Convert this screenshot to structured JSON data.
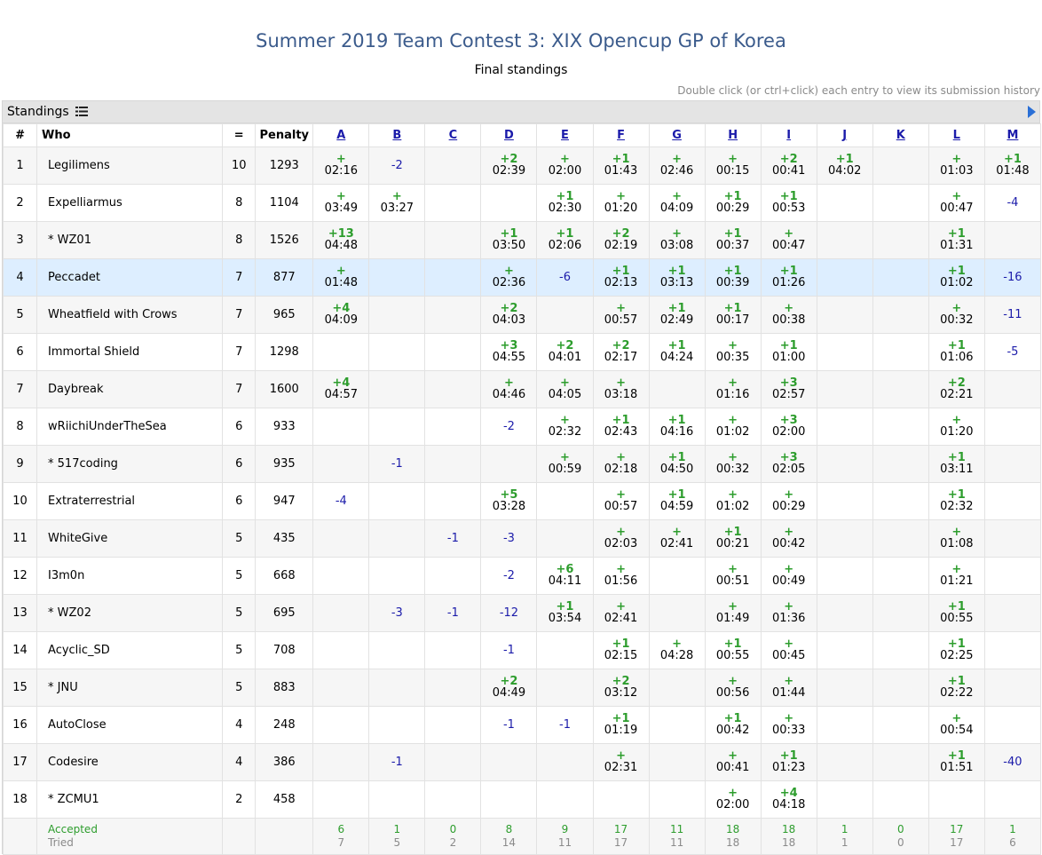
{
  "title": "Summer 2019 Team Contest 3: XIX Opencup GP of Korea",
  "subtitle": "Final standings",
  "hint": "Double click (or ctrl+click) each entry to view its submission history",
  "panel_label": "Standings",
  "headers": {
    "rank": "#",
    "who": "Who",
    "solved": "=",
    "penalty": "Penalty"
  },
  "problems": [
    "A",
    "B",
    "C",
    "D",
    "E",
    "F",
    "G",
    "H",
    "I",
    "J",
    "K",
    "L",
    "M"
  ],
  "highlight_color": "#ddeeff",
  "accepted_color": "#2d9d2d",
  "rejected_color": "#1b1baa",
  "rows": [
    {
      "rank": "1",
      "name": "Legilimens",
      "solved": "10",
      "penalty": "1293",
      "cells": [
        [
          "+",
          "02:16"
        ],
        "-2",
        "",
        [
          "+2",
          "02:39"
        ],
        [
          "+",
          "02:00"
        ],
        [
          "+1",
          "01:43"
        ],
        [
          "+",
          "02:46"
        ],
        [
          "+",
          "00:15"
        ],
        [
          "+2",
          "00:41"
        ],
        [
          "+1",
          "04:02"
        ],
        "",
        [
          "+",
          "01:03"
        ],
        [
          "+1",
          "01:48"
        ]
      ]
    },
    {
      "rank": "2",
      "name": "Expelliarmus",
      "solved": "8",
      "penalty": "1104",
      "cells": [
        [
          "+",
          "03:49"
        ],
        [
          "+",
          "03:27"
        ],
        "",
        "",
        [
          "+1",
          "02:30"
        ],
        [
          "+",
          "01:20"
        ],
        [
          "+",
          "04:09"
        ],
        [
          "+1",
          "00:29"
        ],
        [
          "+1",
          "00:53"
        ],
        "",
        "",
        [
          "+",
          "00:47"
        ],
        "-4"
      ]
    },
    {
      "rank": "3",
      "name": "* WZ01",
      "solved": "8",
      "penalty": "1526",
      "cells": [
        [
          "+13",
          "04:48"
        ],
        "",
        "",
        [
          "+1",
          "03:50"
        ],
        [
          "+1",
          "02:06"
        ],
        [
          "+2",
          "02:19"
        ],
        [
          "+",
          "03:08"
        ],
        [
          "+1",
          "00:37"
        ],
        [
          "+",
          "00:47"
        ],
        "",
        "",
        [
          "+1",
          "01:31"
        ],
        ""
      ]
    },
    {
      "rank": "4",
      "name": "Peccadet",
      "solved": "7",
      "penalty": "877",
      "highlight": true,
      "cells": [
        [
          "+",
          "01:48"
        ],
        "",
        "",
        [
          "+",
          "02:36"
        ],
        "-6",
        [
          "+1",
          "02:13"
        ],
        [
          "+1",
          "03:13"
        ],
        [
          "+1",
          "00:39"
        ],
        [
          "+1",
          "01:26"
        ],
        "",
        "",
        [
          "+1",
          "01:02"
        ],
        "-16"
      ]
    },
    {
      "rank": "5",
      "name": "Wheatfield with Crows",
      "solved": "7",
      "penalty": "965",
      "cells": [
        [
          "+4",
          "04:09"
        ],
        "",
        "",
        [
          "+2",
          "04:03"
        ],
        "",
        [
          "+",
          "00:57"
        ],
        [
          "+1",
          "02:49"
        ],
        [
          "+1",
          "00:17"
        ],
        [
          "+",
          "00:38"
        ],
        "",
        "",
        [
          "+",
          "00:32"
        ],
        "-11"
      ]
    },
    {
      "rank": "6",
      "name": "Immortal Shield",
      "solved": "7",
      "penalty": "1298",
      "cells": [
        "",
        "",
        "",
        [
          "+3",
          "04:55"
        ],
        [
          "+2",
          "04:01"
        ],
        [
          "+2",
          "02:17"
        ],
        [
          "+1",
          "04:24"
        ],
        [
          "+",
          "00:35"
        ],
        [
          "+1",
          "01:00"
        ],
        "",
        "",
        [
          "+1",
          "01:06"
        ],
        "-5"
      ]
    },
    {
      "rank": "7",
      "name": "Daybreak",
      "solved": "7",
      "penalty": "1600",
      "cells": [
        [
          "+4",
          "04:57"
        ],
        "",
        "",
        [
          "+",
          "04:46"
        ],
        [
          "+",
          "04:05"
        ],
        [
          "+",
          "03:18"
        ],
        "",
        [
          "+",
          "01:16"
        ],
        [
          "+3",
          "02:57"
        ],
        "",
        "",
        [
          "+2",
          "02:21"
        ],
        ""
      ]
    },
    {
      "rank": "8",
      "name": "wRiichiUnderTheSea",
      "solved": "6",
      "penalty": "933",
      "cells": [
        "",
        "",
        "",
        "-2",
        [
          "+",
          "02:32"
        ],
        [
          "+1",
          "02:43"
        ],
        [
          "+1",
          "04:16"
        ],
        [
          "+",
          "01:02"
        ],
        [
          "+3",
          "02:00"
        ],
        "",
        "",
        [
          "+",
          "01:20"
        ],
        ""
      ]
    },
    {
      "rank": "9",
      "name": "* 517coding",
      "solved": "6",
      "penalty": "935",
      "cells": [
        "",
        "-1",
        "",
        "",
        [
          "+",
          "00:59"
        ],
        [
          "+",
          "02:18"
        ],
        [
          "+1",
          "04:50"
        ],
        [
          "+",
          "00:32"
        ],
        [
          "+3",
          "02:05"
        ],
        "",
        "",
        [
          "+1",
          "03:11"
        ],
        ""
      ]
    },
    {
      "rank": "10",
      "name": "Extraterrestrial",
      "solved": "6",
      "penalty": "947",
      "cells": [
        "-4",
        "",
        "",
        [
          "+5",
          "03:28"
        ],
        "",
        [
          "+",
          "00:57"
        ],
        [
          "+1",
          "04:59"
        ],
        [
          "+",
          "01:02"
        ],
        [
          "+",
          "00:29"
        ],
        "",
        "",
        [
          "+1",
          "02:32"
        ],
        ""
      ]
    },
    {
      "rank": "11",
      "name": "WhiteGive",
      "solved": "5",
      "penalty": "435",
      "cells": [
        "",
        "",
        "-1",
        "-3",
        "",
        [
          "+",
          "02:03"
        ],
        [
          "+",
          "02:41"
        ],
        [
          "+1",
          "00:21"
        ],
        [
          "+",
          "00:42"
        ],
        "",
        "",
        [
          "+",
          "01:08"
        ],
        ""
      ]
    },
    {
      "rank": "12",
      "name": "I3m0n",
      "solved": "5",
      "penalty": "668",
      "cells": [
        "",
        "",
        "",
        "-2",
        [
          "+6",
          "04:11"
        ],
        [
          "+",
          "01:56"
        ],
        "",
        [
          "+",
          "00:51"
        ],
        [
          "+",
          "00:49"
        ],
        "",
        "",
        [
          "+",
          "01:21"
        ],
        ""
      ]
    },
    {
      "rank": "13",
      "name": "* WZ02",
      "solved": "5",
      "penalty": "695",
      "cells": [
        "",
        "-3",
        "-1",
        "-12",
        [
          "+1",
          "03:54"
        ],
        [
          "+",
          "02:41"
        ],
        "",
        [
          "+",
          "01:49"
        ],
        [
          "+",
          "01:36"
        ],
        "",
        "",
        [
          "+1",
          "00:55"
        ],
        ""
      ]
    },
    {
      "rank": "14",
      "name": "Acyclic_SD",
      "solved": "5",
      "penalty": "708",
      "cells": [
        "",
        "",
        "",
        "-1",
        "",
        [
          "+1",
          "02:15"
        ],
        [
          "+",
          "04:28"
        ],
        [
          "+1",
          "00:55"
        ],
        [
          "+",
          "00:45"
        ],
        "",
        "",
        [
          "+1",
          "02:25"
        ],
        ""
      ]
    },
    {
      "rank": "15",
      "name": "* JNU",
      "solved": "5",
      "penalty": "883",
      "cells": [
        "",
        "",
        "",
        [
          "+2",
          "04:49"
        ],
        "",
        [
          "+2",
          "03:12"
        ],
        "",
        [
          "+",
          "00:56"
        ],
        [
          "+",
          "01:44"
        ],
        "",
        "",
        [
          "+1",
          "02:22"
        ],
        ""
      ]
    },
    {
      "rank": "16",
      "name": "AutoClose",
      "solved": "4",
      "penalty": "248",
      "cells": [
        "",
        "",
        "",
        "-1",
        "-1",
        [
          "+1",
          "01:19"
        ],
        "",
        [
          "+1",
          "00:42"
        ],
        [
          "+",
          "00:33"
        ],
        "",
        "",
        [
          "+",
          "00:54"
        ],
        ""
      ]
    },
    {
      "rank": "17",
      "name": "Codesire",
      "solved": "4",
      "penalty": "386",
      "cells": [
        "",
        "-1",
        "",
        "",
        "",
        [
          "+",
          "02:31"
        ],
        "",
        [
          "+",
          "00:41"
        ],
        [
          "+1",
          "01:23"
        ],
        "",
        "",
        [
          "+1",
          "01:51"
        ],
        "-40"
      ]
    },
    {
      "rank": "18",
      "name": "* ZCMU1",
      "solved": "2",
      "penalty": "458",
      "cells": [
        "",
        "",
        "",
        "",
        "",
        "",
        "",
        [
          "+",
          "02:00"
        ],
        [
          "+4",
          "04:18"
        ],
        "",
        "",
        "",
        ""
      ]
    }
  ],
  "footer": {
    "accepted_label": "Accepted",
    "tried_label": "Tried",
    "accepted": [
      "6",
      "1",
      "0",
      "8",
      "9",
      "17",
      "11",
      "18",
      "18",
      "1",
      "0",
      "17",
      "1"
    ],
    "tried": [
      "7",
      "5",
      "2",
      "14",
      "11",
      "17",
      "11",
      "18",
      "18",
      "1",
      "0",
      "17",
      "6"
    ]
  }
}
